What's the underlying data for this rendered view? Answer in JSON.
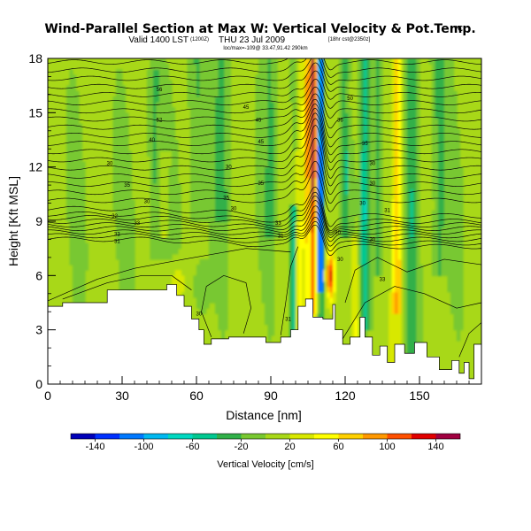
{
  "header": {
    "title": "Wind-Parallel Section at Max W: Vertical Velocity & Pot.Temp.",
    "copyright": "(C)",
    "valid_line": "Valid 1400 LST",
    "utc": "(1200Z)",
    "date_line": "THU 23 Jul 2009",
    "run_info": "[18hr cst@2350z]",
    "sub_info": "loc/max=-109@ 33.47,91.42 290km"
  },
  "chart_data": {
    "type": "heatmap",
    "xlabel": "Distance [nm]",
    "ylabel": "Height [Kft MSL]",
    "xlim": [
      0,
      175
    ],
    "ylim": [
      0,
      18
    ],
    "xticks": [
      0,
      30,
      60,
      90,
      120,
      150
    ],
    "yticks": [
      0,
      3,
      6,
      9,
      12,
      15,
      18
    ],
    "contour_field": "potential temperature",
    "colorbar": {
      "label": "Vertical Velocity [cm/s]",
      "range": [
        -160,
        160
      ],
      "tick_values": [
        -140,
        -100,
        -60,
        -20,
        20,
        60,
        100,
        140
      ],
      "tick_labels": [
        "-140",
        "-100",
        "-60",
        "-20",
        "20",
        "60",
        "100",
        "140"
      ],
      "bins": [
        {
          "lo": -160,
          "hi": -140,
          "color": "#0000b8"
        },
        {
          "lo": -140,
          "hi": -120,
          "color": "#0030ff"
        },
        {
          "lo": -120,
          "hi": -100,
          "color": "#0078ff"
        },
        {
          "lo": -100,
          "hi": -80,
          "color": "#00b8f0"
        },
        {
          "lo": -80,
          "hi": -60,
          "color": "#00d8c0"
        },
        {
          "lo": -60,
          "hi": -40,
          "color": "#00c890"
        },
        {
          "lo": -40,
          "hi": -20,
          "color": "#30b048"
        },
        {
          "lo": -20,
          "hi": 0,
          "color": "#78c830"
        },
        {
          "lo": 0,
          "hi": 20,
          "color": "#a8d818"
        },
        {
          "lo": 20,
          "hi": 40,
          "color": "#d8e800"
        },
        {
          "lo": 40,
          "hi": 60,
          "color": "#ffff00"
        },
        {
          "lo": 60,
          "hi": 80,
          "color": "#ffd000"
        },
        {
          "lo": 80,
          "hi": 100,
          "color": "#ff9800"
        },
        {
          "lo": 100,
          "hi": 120,
          "color": "#ff5000"
        },
        {
          "lo": 120,
          "hi": 140,
          "color": "#e00000"
        },
        {
          "lo": 140,
          "hi": 160,
          "color": "#a00040"
        }
      ]
    },
    "terrain_kft": [
      [
        0,
        4.3
      ],
      [
        6,
        4.3
      ],
      [
        6,
        4.5
      ],
      [
        24,
        4.5
      ],
      [
        24,
        5.2
      ],
      [
        48,
        5.2
      ],
      [
        48,
        5.5
      ],
      [
        52,
        5.5
      ],
      [
        52,
        4.9
      ],
      [
        55,
        4.9
      ],
      [
        55,
        4.3
      ],
      [
        58,
        4.3
      ],
      [
        58,
        3.6
      ],
      [
        61,
        3.6
      ],
      [
        61,
        3.0
      ],
      [
        63,
        3.0
      ],
      [
        63,
        2.2
      ],
      [
        66,
        2.2
      ],
      [
        66,
        2.5
      ],
      [
        73,
        2.5
      ],
      [
        73,
        2.6
      ],
      [
        88,
        2.6
      ],
      [
        88,
        2.3
      ],
      [
        94,
        2.3
      ],
      [
        94,
        2.6
      ],
      [
        98,
        2.6
      ],
      [
        98,
        3.0
      ],
      [
        101,
        3.0
      ],
      [
        101,
        4.3
      ],
      [
        104,
        4.3
      ],
      [
        104,
        4.7
      ],
      [
        107,
        4.7
      ],
      [
        107,
        3.7
      ],
      [
        111,
        3.7
      ],
      [
        111,
        3.6
      ],
      [
        115,
        3.6
      ],
      [
        115,
        4.4
      ],
      [
        116,
        4.4
      ],
      [
        116,
        3.0
      ],
      [
        119,
        3.0
      ],
      [
        119,
        2.2
      ],
      [
        122,
        2.2
      ],
      [
        122,
        2.6
      ],
      [
        126,
        2.6
      ],
      [
        126,
        3.7
      ],
      [
        128,
        3.7
      ],
      [
        128,
        2.6
      ],
      [
        131,
        2.6
      ],
      [
        131,
        1.6
      ],
      [
        134,
        1.6
      ],
      [
        134,
        2.1
      ],
      [
        137,
        2.1
      ],
      [
        137,
        1.2
      ],
      [
        140,
        1.2
      ],
      [
        140,
        2.2
      ],
      [
        144,
        2.2
      ],
      [
        144,
        1.7
      ],
      [
        148,
        1.7
      ],
      [
        148,
        2.3
      ],
      [
        153,
        2.3
      ],
      [
        153,
        1.5
      ],
      [
        158,
        1.5
      ],
      [
        158,
        0.8
      ],
      [
        163,
        0.8
      ],
      [
        163,
        1.3
      ],
      [
        166,
        1.3
      ],
      [
        166,
        0.6
      ],
      [
        168,
        0.6
      ],
      [
        168,
        1.2
      ],
      [
        170,
        1.2
      ],
      [
        170,
        0.3
      ],
      [
        172,
        0.3
      ],
      [
        172,
        2.2
      ],
      [
        175,
        2.2
      ]
    ],
    "contour_labels": [
      {
        "x": 45,
        "y": 16.3,
        "text": "56"
      },
      {
        "x": 80,
        "y": 15.3,
        "text": "45"
      },
      {
        "x": 122,
        "y": 15.8,
        "text": "50"
      },
      {
        "x": 45,
        "y": 14.6,
        "text": "52"
      },
      {
        "x": 85,
        "y": 14.6,
        "text": "45"
      },
      {
        "x": 118,
        "y": 14.6,
        "text": "36"
      },
      {
        "x": 42,
        "y": 13.5,
        "text": "40"
      },
      {
        "x": 86,
        "y": 13.4,
        "text": "45"
      },
      {
        "x": 128,
        "y": 13.3,
        "text": "35"
      },
      {
        "x": 25,
        "y": 12.2,
        "text": "30"
      },
      {
        "x": 73,
        "y": 12.0,
        "text": "30"
      },
      {
        "x": 131,
        "y": 12.2,
        "text": "30"
      },
      {
        "x": 32,
        "y": 11.0,
        "text": "35"
      },
      {
        "x": 86,
        "y": 11.1,
        "text": "35"
      },
      {
        "x": 131,
        "y": 11.1,
        "text": "30"
      },
      {
        "x": 40,
        "y": 10.1,
        "text": "30"
      },
      {
        "x": 72,
        "y": 10.3,
        "text": "35"
      },
      {
        "x": 127,
        "y": 10.0,
        "text": "30"
      },
      {
        "x": 27,
        "y": 9.3,
        "text": "32"
      },
      {
        "x": 75,
        "y": 9.7,
        "text": "30"
      },
      {
        "x": 137,
        "y": 9.6,
        "text": "31"
      },
      {
        "x": 36,
        "y": 8.9,
        "text": "33"
      },
      {
        "x": 93,
        "y": 8.9,
        "text": "33"
      },
      {
        "x": 117,
        "y": 8.4,
        "text": "30"
      },
      {
        "x": 28,
        "y": 8.3,
        "text": "33"
      },
      {
        "x": 28,
        "y": 7.9,
        "text": "31"
      },
      {
        "x": 94,
        "y": 8.2,
        "text": "31"
      },
      {
        "x": 131,
        "y": 8.0,
        "text": "30"
      },
      {
        "x": 118,
        "y": 6.9,
        "text": "30"
      },
      {
        "x": 135,
        "y": 5.8,
        "text": "33"
      },
      {
        "x": 61,
        "y": 3.9,
        "text": "30"
      },
      {
        "x": 97,
        "y": 3.6,
        "text": "31"
      }
    ]
  }
}
